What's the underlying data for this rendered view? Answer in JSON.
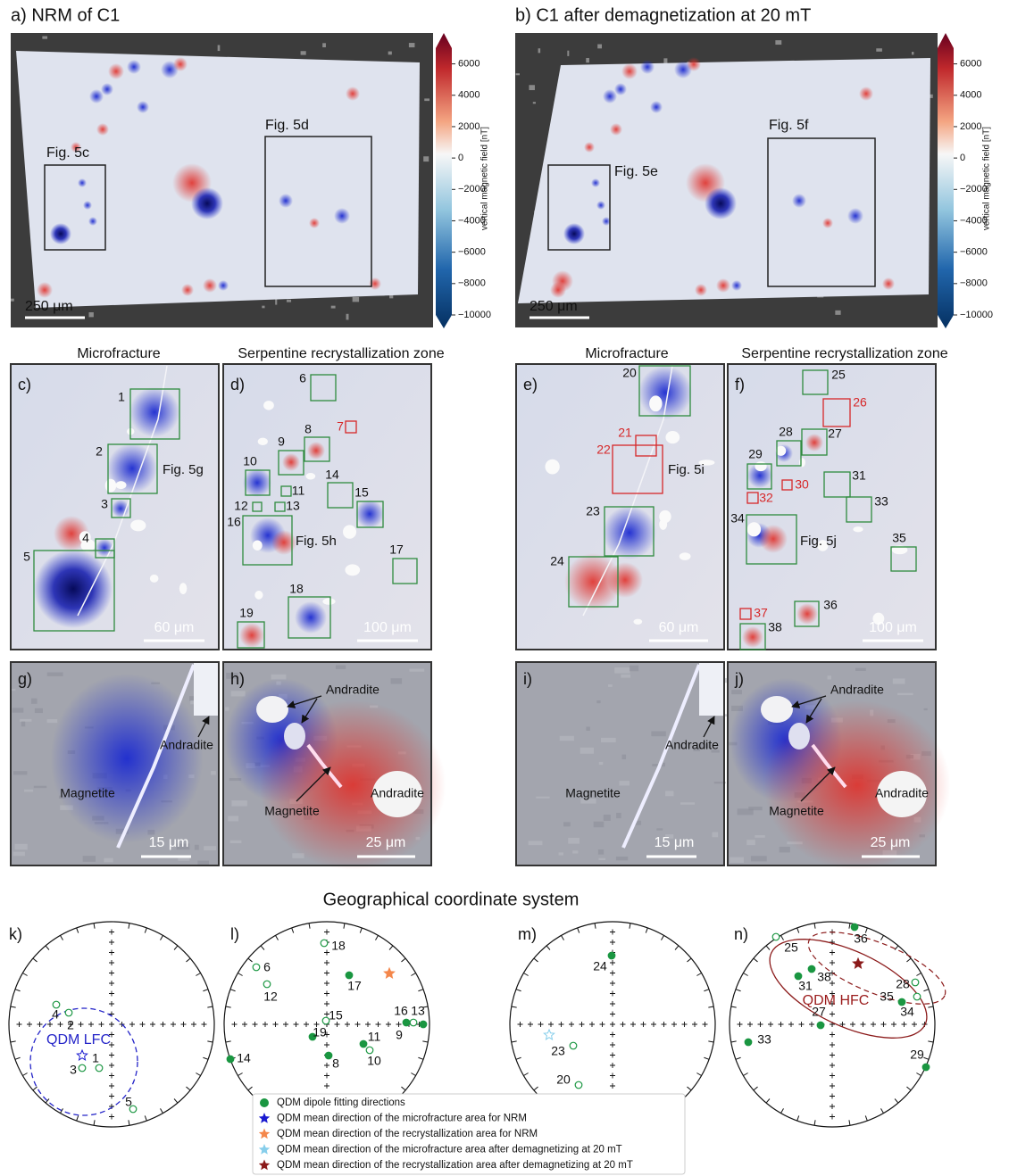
{
  "maps": [
    {
      "title": "a) NRM of C1",
      "boxes": [
        "Fig. 5c",
        "Fig. 5d"
      ],
      "scale_bar": "250 μm",
      "colorbar": {
        "label": "vertical magnetic field [nT]",
        "lim": [
          -10000,
          7000
        ],
        "ticks": [
          6000,
          4000,
          2000,
          0,
          {
            "value": -2000,
            "label": "−2000"
          },
          {
            "value": -4000,
            "label": "−4000"
          },
          {
            "value": -6000,
            "label": "−6000"
          },
          {
            "value": -8000,
            "label": "−8000"
          },
          {
            "value": -10000,
            "label": "−10000"
          }
        ]
      }
    },
    {
      "title": "b) C1 after demagnetization at 20 mT",
      "boxes": [
        "Fig. 5e",
        "Fig. 5f"
      ],
      "scale_bar": "250 μm",
      "colorbar": {
        "label": "vertical magnetic field [nT]",
        "lim": [
          -10000,
          7000
        ],
        "ticks": [
          6000,
          4000,
          2000,
          0,
          {
            "value": -2000,
            "label": "−2000"
          },
          {
            "value": -4000,
            "label": "−4000"
          },
          {
            "value": -6000,
            "label": "−6000"
          },
          {
            "value": -8000,
            "label": "−8000"
          },
          {
            "value": -10000,
            "label": "−10000"
          }
        ]
      }
    }
  ],
  "zooms": [
    {
      "heading": "Microfracture",
      "letter": "c)",
      "fig_label": "Fig. 5g",
      "scale_bar": "60 μm",
      "boxes": [
        {
          "label": "1",
          "color": "#2e8b3e"
        },
        {
          "label": "2",
          "color": "#2e8b3e"
        },
        {
          "label": "3",
          "color": "#2e8b3e"
        },
        {
          "label": "4",
          "color": "#2e8b3e"
        },
        {
          "label": "5",
          "color": "#2e8b3e"
        }
      ]
    },
    {
      "heading": "Serpentine recrystallization zone",
      "letter": "d)",
      "fig_label": "Fig. 5h",
      "scale_bar": "100 μm",
      "boxes": [
        {
          "label": "6",
          "color": "#2e8b3e"
        },
        {
          "label": "7",
          "color": "#d62728"
        },
        {
          "label": "8",
          "color": "#2e8b3e"
        },
        {
          "label": "9",
          "color": "#2e8b3e"
        },
        {
          "label": "10",
          "color": "#2e8b3e"
        },
        {
          "label": "11",
          "color": "#2e8b3e"
        },
        {
          "label": "12",
          "color": "#2e8b3e"
        },
        {
          "label": "13",
          "color": "#2e8b3e"
        },
        {
          "label": "14",
          "color": "#2e8b3e"
        },
        {
          "label": "15",
          "color": "#2e8b3e"
        },
        {
          "label": "16",
          "color": "#2e8b3e"
        },
        {
          "label": "17",
          "color": "#2e8b3e"
        },
        {
          "label": "18",
          "color": "#2e8b3e"
        },
        {
          "label": "19",
          "color": "#2e8b3e"
        }
      ]
    },
    {
      "heading": "Microfracture",
      "letter": "e)",
      "fig_label": "Fig. 5i",
      "scale_bar": "60 μm",
      "boxes": [
        {
          "label": "20",
          "color": "#2e8b3e"
        },
        {
          "label": "21",
          "color": "#d62728"
        },
        {
          "label": "22",
          "color": "#d62728"
        },
        {
          "label": "23",
          "color": "#2e8b3e"
        },
        {
          "label": "24",
          "color": "#2e8b3e"
        }
      ]
    },
    {
      "heading": "Serpentine recrystallization zone",
      "letter": "f)",
      "fig_label": "Fig. 5j",
      "scale_bar": "100 μm",
      "boxes": [
        {
          "label": "25",
          "color": "#2e8b3e"
        },
        {
          "label": "26",
          "color": "#d62728"
        },
        {
          "label": "27",
          "color": "#2e8b3e"
        },
        {
          "label": "28",
          "color": "#2e8b3e"
        },
        {
          "label": "29",
          "color": "#2e8b3e"
        },
        {
          "label": "30",
          "color": "#d62728"
        },
        {
          "label": "31",
          "color": "#2e8b3e"
        },
        {
          "label": "32",
          "color": "#d62728"
        },
        {
          "label": "33",
          "color": "#2e8b3e"
        },
        {
          "label": "34",
          "color": "#2e8b3e"
        },
        {
          "label": "35",
          "color": "#2e8b3e"
        },
        {
          "label": "36",
          "color": "#2e8b3e"
        },
        {
          "label": "37",
          "color": "#d62728"
        },
        {
          "label": "38",
          "color": "#2e8b3e"
        }
      ]
    }
  ],
  "closeups": [
    {
      "letter": "g)",
      "labels": [
        "Andradite",
        "Magnetite"
      ],
      "scale_bar": "15 μm"
    },
    {
      "letter": "h)",
      "labels": [
        "Andradite",
        "Magnetite",
        "Andradite"
      ],
      "scale_bar": "25 μm"
    },
    {
      "letter": "i)",
      "labels": [
        "Andradite",
        "Magnetite"
      ],
      "scale_bar": "15 μm"
    },
    {
      "letter": "j)",
      "labels": [
        "Andradite",
        "Magnetite",
        "Andradite"
      ],
      "scale_bar": "25 μm"
    }
  ],
  "stereonets": {
    "title": "Geographical coordinate system",
    "nets": [
      {
        "letter": "k)",
        "annotation": "QDM LFC",
        "annotation_color": "#2424c8",
        "points": [
          {
            "label": "4",
            "filled": false
          },
          {
            "label": "2",
            "filled": false
          },
          {
            "label": "1",
            "filled": false
          },
          {
            "label": "3",
            "filled": false
          },
          {
            "label": "5",
            "filled": false
          }
        ]
      },
      {
        "letter": "l)",
        "points": [
          {
            "label": "6",
            "filled": false
          },
          {
            "label": "8",
            "filled": true
          },
          {
            "label": "9",
            "filled": true
          },
          {
            "label": "10",
            "filled": false
          },
          {
            "label": "11",
            "filled": true
          },
          {
            "label": "12",
            "filled": false
          },
          {
            "label": "13",
            "filled": true
          },
          {
            "label": "14",
            "filled": true
          },
          {
            "label": "15",
            "filled": false
          },
          {
            "label": "16",
            "filled": false
          },
          {
            "label": "17",
            "filled": true
          },
          {
            "label": "18",
            "filled": false
          },
          {
            "label": "19",
            "filled": true
          }
        ]
      },
      {
        "letter": "m)",
        "points": [
          {
            "label": "20",
            "filled": false
          },
          {
            "label": "23",
            "filled": false
          },
          {
            "label": "24",
            "filled": true
          }
        ]
      },
      {
        "letter": "n)",
        "annotation": "QDM HFC",
        "annotation_color": "#9b1c1c",
        "points": [
          {
            "label": "25",
            "filled": false
          },
          {
            "label": "27",
            "filled": true
          },
          {
            "label": "28",
            "filled": false
          },
          {
            "label": "29",
            "filled": true
          },
          {
            "label": "31",
            "filled": true
          },
          {
            "label": "33",
            "filled": true
          },
          {
            "label": "34",
            "filled": true
          },
          {
            "label": "35",
            "filled": false
          },
          {
            "label": "36",
            "filled": true
          },
          {
            "label": "38",
            "filled": true
          }
        ]
      }
    ],
    "legend": [
      {
        "label": "QDM dipole fitting directions",
        "marker": "circle",
        "color": "#1a9641"
      },
      {
        "label": "QDM mean direction of the microfracture area for NRM",
        "marker": "star",
        "color": "#1a1ad0"
      },
      {
        "label": "QDM mean direction of the recrystallization area for NRM",
        "marker": "star",
        "color": "#f4874b"
      },
      {
        "label": "QDM mean direction of the microfracture area after demagnetizing at 20 mT",
        "marker": "star",
        "color": "#87ceeb"
      },
      {
        "label": "QDM mean direction of the recrystallization area after demagnetizing at 20 mT",
        "marker": "star",
        "color": "#8b1a1a"
      }
    ]
  }
}
